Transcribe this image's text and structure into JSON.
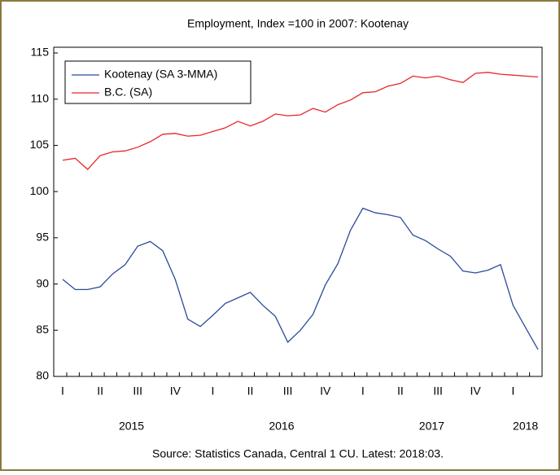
{
  "chart_data": {
    "type": "line",
    "title": "Employment, Index =100 in 2007: Kootenay",
    "source": "Source: Statistics Canada, Central 1 CU. Latest: 2018:03.",
    "categories": [
      "I",
      null,
      null,
      "II",
      null,
      null,
      "III",
      null,
      null,
      "IV",
      null,
      null,
      "I",
      null,
      null,
      "II",
      null,
      null,
      "III",
      null,
      null,
      "IV",
      null,
      null,
      "I",
      null,
      null,
      "II",
      null,
      null,
      "III",
      null,
      null,
      "IV",
      null,
      null,
      "I",
      null,
      null
    ],
    "year_labels": [
      "2015",
      "2016",
      "2017",
      "2018"
    ],
    "series": [
      {
        "name": "Kootenay (SA 3-MMA)",
        "color": "#2b4a9b",
        "values": [
          90.5,
          89.4,
          89.4,
          89.7,
          91.1,
          92.1,
          94.1,
          94.6,
          93.6,
          90.5,
          86.2,
          85.4,
          86.6,
          87.9,
          88.5,
          89.1,
          87.7,
          86.5,
          83.7,
          85.0,
          86.7,
          89.9,
          92.2,
          95.8,
          98.2,
          97.7,
          97.5,
          97.2,
          95.3,
          94.7,
          93.8,
          93.0,
          91.4,
          91.2,
          91.5,
          92.1,
          87.7,
          85.3,
          82.9
        ]
      },
      {
        "name": "B.C. (SA)",
        "color": "#e8262a",
        "values": [
          103.4,
          103.6,
          102.4,
          103.9,
          104.3,
          104.4,
          104.8,
          105.4,
          106.2,
          106.3,
          106.0,
          106.1,
          106.5,
          106.9,
          107.6,
          107.1,
          107.6,
          108.4,
          108.2,
          108.3,
          109.0,
          108.6,
          109.4,
          109.9,
          110.7,
          110.8,
          111.4,
          111.7,
          112.5,
          112.3,
          112.5,
          112.1,
          111.8,
          112.8,
          112.9,
          112.7,
          112.6,
          112.5,
          112.4
        ]
      }
    ],
    "ylim": [
      80,
      115
    ],
    "yticks": [
      80,
      85,
      90,
      95,
      100,
      105,
      110,
      115
    ],
    "legend": "upper left"
  }
}
